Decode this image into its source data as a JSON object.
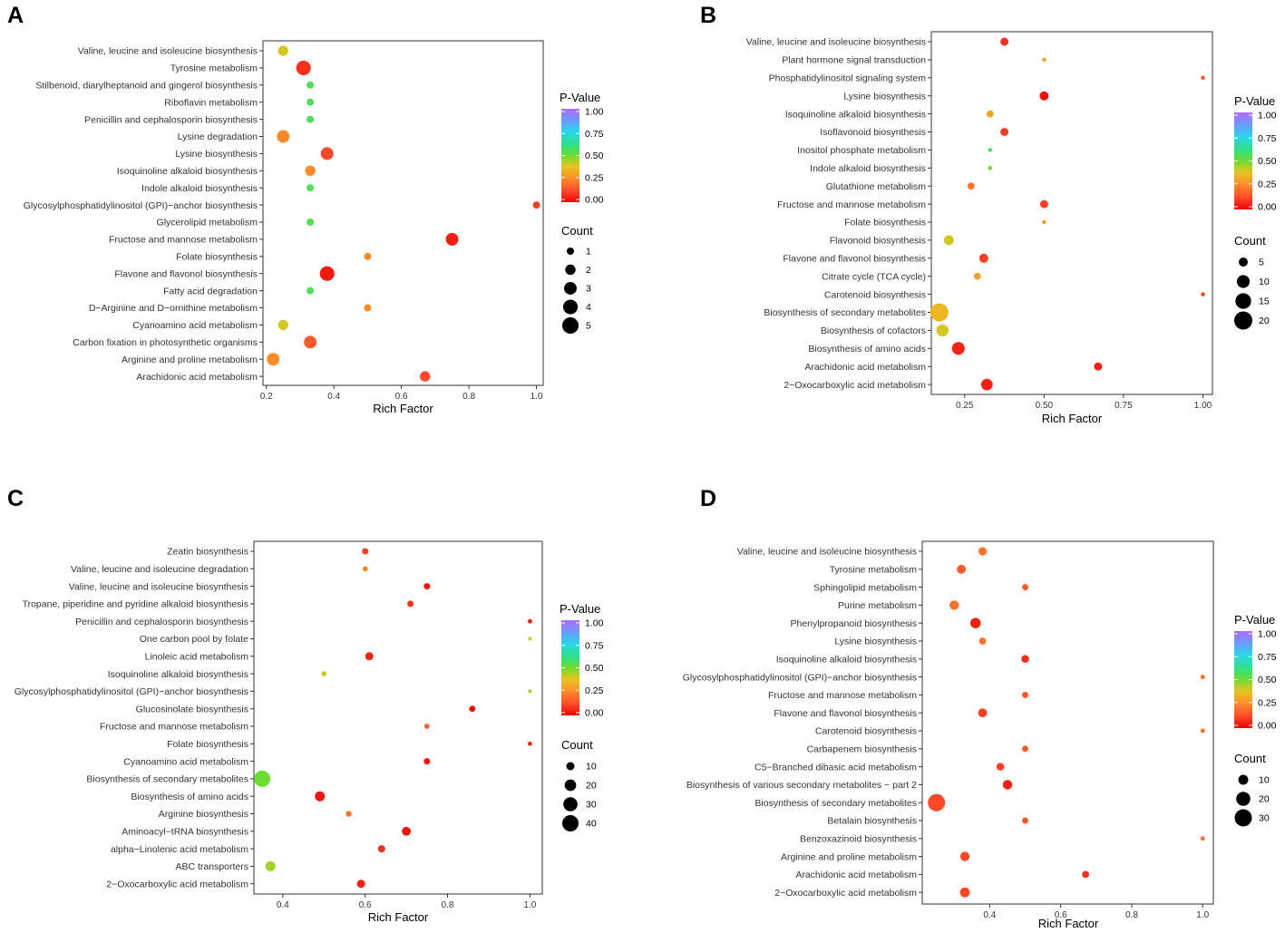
{
  "chart_data": [
    {
      "panel": "A",
      "type": "scatter",
      "xlabel": "Rich Factor",
      "xlim": [
        0.19,
        1.02
      ],
      "xticks": [
        "0.2",
        "0.4",
        "0.6",
        "0.8",
        "1.0"
      ],
      "pvalue_legend": {
        "title": "P-Value",
        "ticks": [
          "1.00",
          "0.75",
          "0.50",
          "0.25",
          "0.00"
        ]
      },
      "count_legend": {
        "title": "Count",
        "labels": [
          "1",
          "2",
          "3",
          "4",
          "5"
        ],
        "sizes": [
          1,
          2,
          3,
          4,
          5
        ]
      },
      "count_max": 5,
      "categories": [
        "Valine, leucine and isoleucine biosynthesis",
        "Tyrosine metabolism",
        "Stilbenoid, diarylheptanoid and gingerol biosynthesis",
        "Riboflavin metabolism",
        "Penicillin and cephalosporin biosynthesis",
        "Lysine degradation",
        "Lysine biosynthesis",
        "Isoquinoline alkaloid biosynthesis",
        "Indole alkaloid biosynthesis",
        "Glycosylphosphatidylinositol (GPI)−anchor biosynthesis",
        "Glycerolipid metabolism",
        "Fructose and mannose metabolism",
        "Folate biosynthesis",
        "Flavone and flavonol biosynthesis",
        "Fatty acid degradation",
        "D−Arginine and D−ornithine metabolism",
        "Cyanoamino acid metabolism",
        "Carbon fixation in photosynthetic organisms",
        "Arginine and proline metabolism",
        "Arachidonic acid metabolism"
      ],
      "rich_factor": [
        0.25,
        0.31,
        0.33,
        0.33,
        0.33,
        0.25,
        0.38,
        0.33,
        0.33,
        1.0,
        0.33,
        0.75,
        0.5,
        0.38,
        0.33,
        0.5,
        0.25,
        0.33,
        0.22,
        0.67
      ],
      "count": [
        2,
        4,
        1,
        1,
        1,
        3,
        3,
        2,
        1,
        1,
        1,
        3,
        1,
        4,
        1,
        1,
        2,
        3,
        3,
        2
      ],
      "p_value": [
        0.4,
        0.08,
        0.55,
        0.55,
        0.55,
        0.25,
        0.12,
        0.25,
        0.55,
        0.1,
        0.55,
        0.05,
        0.25,
        0.04,
        0.55,
        0.25,
        0.4,
        0.15,
        0.25,
        0.12
      ]
    },
    {
      "panel": "B",
      "type": "scatter",
      "xlabel": "Rich Factor",
      "xlim": [
        0.145,
        1.03
      ],
      "xticks": [
        "0.25",
        "0.50",
        "0.75",
        "1.00"
      ],
      "pvalue_legend": {
        "title": "P-Value",
        "ticks": [
          "1.00",
          "0.75",
          "0.50",
          "0.25",
          "0.00"
        ]
      },
      "count_legend": {
        "title": "Count",
        "labels": [
          "5",
          "10",
          "15",
          "20"
        ],
        "sizes": [
          5,
          10,
          15,
          20
        ]
      },
      "count_max": 20,
      "categories": [
        "Valine, leucine and isoleucine biosynthesis",
        "Plant hormone signal transduction",
        "Phosphatidylinositol signaling system",
        "Lysine biosynthesis",
        "Isoquinoline alkaloid biosynthesis",
        "Isoflavonoid biosynthesis",
        "Inositol phosphate metabolism",
        "Indole alkaloid biosynthesis",
        "Glutathione metabolism",
        "Fructose and mannose metabolism",
        "Folate biosynthesis",
        "Flavonoid biosynthesis",
        "Flavone and flavonol biosynthesis",
        "Citrate cycle (TCA cycle)",
        "Carotenoid biosynthesis",
        "Biosynthesis of secondary metabolites",
        "Biosynthesis of cofactors",
        "Biosynthesis of amino acids",
        "Arachidonic acid metabolism",
        "2−Oxocarboxylic acid metabolism"
      ],
      "rich_factor": [
        0.375,
        0.5,
        1.0,
        0.5,
        0.33,
        0.375,
        0.33,
        0.33,
        0.27,
        0.5,
        0.5,
        0.2,
        0.31,
        0.29,
        1.0,
        0.17,
        0.18,
        0.23,
        0.67,
        0.32
      ],
      "count": [
        4,
        1,
        1,
        5,
        3,
        4,
        1,
        1,
        3,
        4,
        1,
        6,
        5,
        3,
        1,
        20,
        9,
        10,
        4,
        8
      ],
      "p_value": [
        0.08,
        0.3,
        0.15,
        0.02,
        0.3,
        0.1,
        0.55,
        0.5,
        0.2,
        0.1,
        0.3,
        0.4,
        0.1,
        0.3,
        0.1,
        0.35,
        0.4,
        0.06,
        0.05,
        0.05
      ]
    },
    {
      "panel": "C",
      "type": "scatter",
      "xlabel": "Rich Factor",
      "xlim": [
        0.33,
        1.03
      ],
      "xticks": [
        "0.4",
        "0.6",
        "0.8",
        "1.0"
      ],
      "pvalue_legend": {
        "title": "P-Value",
        "ticks": [
          "1.00",
          "0.75",
          "0.50",
          "0.25",
          "0.00"
        ]
      },
      "count_legend": {
        "title": "Count",
        "labels": [
          "10",
          "20",
          "30",
          "40"
        ],
        "sizes": [
          10,
          20,
          30,
          40
        ]
      },
      "count_max": 40,
      "categories": [
        "Zeatin biosynthesis",
        "Valine, leucine and isoleucine degradation",
        "Valine, leucine and isoleucine biosynthesis",
        "Tropane, piperidine and pyridine alkaloid biosynthesis",
        "Penicillin and cephalosporin biosynthesis",
        "One carbon pool by folate",
        "Linoleic acid metabolism",
        "Isoquinoline alkaloid biosynthesis",
        "Glycosylphosphatidylinositol (GPI)−anchor biosynthesis",
        "Glucosinolate biosynthesis",
        "Fructose and mannose metabolism",
        "Folate biosynthesis",
        "Cyanoamino acid metabolism",
        "Biosynthesis of secondary metabolites",
        "Biosynthesis of amino acids",
        "Arginine biosynthesis",
        "Aminoacyl−tRNA biosynthesis",
        "alpha−Linolenic acid metabolism",
        "ABC transporters",
        "2−Oxocarboxylic acid metabolism"
      ],
      "rich_factor": [
        0.6,
        0.6,
        0.75,
        0.71,
        1.0,
        1.0,
        0.61,
        0.5,
        1.0,
        0.86,
        0.75,
        1.0,
        0.75,
        0.35,
        0.49,
        0.56,
        0.7,
        0.64,
        0.37,
        0.59
      ],
      "count": [
        6,
        4,
        6,
        6,
        3,
        2,
        10,
        4,
        2,
        6,
        4,
        3,
        6,
        40,
        15,
        5,
        12,
        8,
        15,
        10
      ],
      "p_value": [
        0.1,
        0.25,
        0.04,
        0.08,
        0.06,
        0.4,
        0.06,
        0.4,
        0.45,
        0.03,
        0.15,
        0.08,
        0.04,
        0.5,
        0.03,
        0.2,
        0.04,
        0.08,
        0.45,
        0.05
      ]
    },
    {
      "panel": "D",
      "type": "scatter",
      "xlabel": "Rich Factor",
      "xlim": [
        0.21,
        1.03
      ],
      "xticks": [
        "0.4",
        "0.6",
        "0.8",
        "1.0"
      ],
      "pvalue_legend": {
        "title": "P-Value",
        "ticks": [
          "1.00",
          "0.75",
          "0.50",
          "0.25",
          "0.00"
        ]
      },
      "count_legend": {
        "title": "Count",
        "labels": [
          "10",
          "20",
          "30"
        ],
        "sizes": [
          10,
          20,
          30
        ]
      },
      "count_max": 30,
      "categories": [
        "Valine, leucine and isoleucine biosynthesis",
        "Tyrosine metabolism",
        "Sphingolipid metabolism",
        "Purine metabolism",
        "Phenylpropanoid biosynthesis",
        "Lysine biosynthesis",
        "Isoquinoline alkaloid biosynthesis",
        "Glycosylphosphatidylinositol (GPI)−anchor biosynthesis",
        "Fructose and mannose metabolism",
        "Flavone and flavonol biosynthesis",
        "Carotenoid biosynthesis",
        "Carbapenem biosynthesis",
        "C5−Branched dibasic acid metabolism",
        "Biosynthesis of various secondary metabolites − part 2",
        "Biosynthesis of secondary metabolites",
        "Betalain biosynthesis",
        "Benzoxazinoid biosynthesis",
        "Arginine and proline metabolism",
        "Arachidonic acid metabolism",
        "2−Oxocarboxylic acid metabolism"
      ],
      "rich_factor": [
        0.38,
        0.32,
        0.5,
        0.3,
        0.36,
        0.38,
        0.5,
        1.0,
        0.5,
        0.38,
        1.0,
        0.5,
        0.43,
        0.45,
        0.25,
        0.5,
        1.0,
        0.33,
        0.67,
        0.33
      ],
      "count": [
        7,
        8,
        4,
        9,
        11,
        5,
        6,
        2,
        4,
        8,
        2,
        4,
        6,
        9,
        30,
        4,
        2,
        9,
        5,
        10
      ],
      "p_value": [
        0.2,
        0.15,
        0.15,
        0.2,
        0.05,
        0.2,
        0.08,
        0.2,
        0.15,
        0.1,
        0.2,
        0.15,
        0.1,
        0.05,
        0.12,
        0.15,
        0.2,
        0.12,
        0.08,
        0.12
      ]
    }
  ]
}
